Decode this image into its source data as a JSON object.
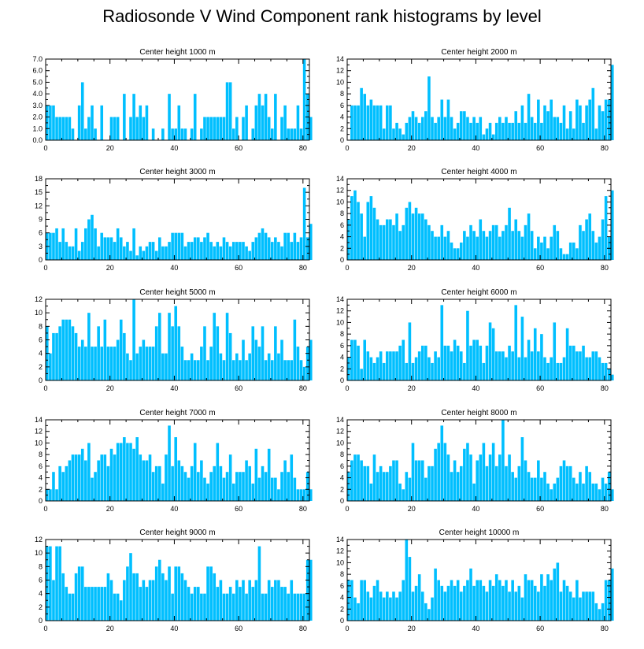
{
  "page": {
    "title": "Radiosonde V Wind Component rank histograms by level"
  },
  "style": {
    "bar_color": "#00BFFF",
    "bar_gap_color": "#ffffff",
    "axis_color": "#000000"
  },
  "chart_data": [
    {
      "type": "bar",
      "title": "Center height 1000 m",
      "xlabel": "",
      "ylabel": "",
      "xlim": [
        0,
        82
      ],
      "ylim": [
        0,
        7
      ],
      "yticks": [
        "0.0",
        "1.0",
        "2.0",
        "3.0",
        "4.0",
        "5.0",
        "6.0",
        "7.0"
      ],
      "ytick_values": [
        0,
        1,
        2,
        3,
        4,
        5,
        6,
        7
      ],
      "xticks": [
        0,
        20,
        40,
        60,
        80
      ],
      "values": [
        3,
        3,
        3,
        2,
        2,
        2,
        2,
        2,
        1,
        0,
        3,
        5,
        1,
        2,
        3,
        1,
        0,
        3,
        0,
        0,
        2,
        2,
        2,
        0,
        4,
        0,
        2,
        4,
        2,
        3,
        2,
        3,
        0,
        1,
        0,
        0,
        1,
        0,
        4,
        1,
        1,
        3,
        1,
        1,
        0,
        1,
        4,
        0,
        1,
        2,
        2,
        2,
        2,
        2,
        2,
        2,
        5,
        5,
        1,
        2,
        0,
        2,
        3,
        0,
        1,
        3,
        4,
        3,
        4,
        2,
        1,
        4,
        0,
        2,
        3,
        1,
        1,
        1,
        3,
        1,
        7,
        4,
        2
      ]
    },
    {
      "type": "bar",
      "title": "Center height 2000 m",
      "xlabel": "",
      "ylabel": "",
      "xlim": [
        0,
        82
      ],
      "ylim": [
        0,
        14
      ],
      "yticks": [
        "0",
        "2",
        "4",
        "6",
        "8",
        "10",
        "12",
        "14"
      ],
      "ytick_values": [
        0,
        2,
        4,
        6,
        8,
        10,
        12,
        14
      ],
      "xticks": [
        0,
        20,
        40,
        60,
        80
      ],
      "values": [
        0,
        6,
        6,
        6,
        9,
        8,
        6,
        7,
        6,
        6,
        6,
        2,
        6,
        6,
        2,
        3,
        2,
        1,
        3,
        4,
        5,
        4,
        3,
        4,
        5,
        11,
        4,
        3,
        4,
        7,
        4,
        7,
        4,
        2,
        3,
        5,
        5,
        4,
        3,
        4,
        3,
        4,
        1,
        2,
        3,
        1,
        3,
        4,
        3,
        4,
        3,
        3,
        5,
        3,
        6,
        3,
        8,
        4,
        3,
        7,
        3,
        6,
        5,
        7,
        4,
        4,
        3,
        6,
        2,
        5,
        2,
        7,
        6,
        3,
        6,
        7,
        9,
        2,
        6,
        5,
        7,
        7,
        13
      ]
    },
    {
      "type": "bar",
      "title": "Center height 3000 m",
      "xlabel": "",
      "ylabel": "",
      "xlim": [
        0,
        82
      ],
      "ylim": [
        0,
        18
      ],
      "yticks": [
        "0",
        "3",
        "6",
        "9",
        "12",
        "15",
        "18"
      ],
      "ytick_values": [
        0,
        3,
        6,
        9,
        12,
        15,
        18
      ],
      "xticks": [
        0,
        20,
        40,
        60,
        80
      ],
      "values": [
        6,
        6,
        6,
        7,
        4,
        7,
        4,
        3,
        3,
        7,
        2,
        4,
        7,
        9,
        10,
        7,
        3,
        6,
        5,
        5,
        5,
        4,
        7,
        5,
        3,
        4,
        2,
        7,
        1,
        3,
        2,
        3,
        4,
        4,
        2,
        5,
        3,
        3,
        4,
        6,
        6,
        6,
        6,
        3,
        4,
        4,
        5,
        5,
        4,
        5,
        6,
        4,
        3,
        4,
        3,
        5,
        4,
        3,
        4,
        4,
        4,
        4,
        3,
        2,
        4,
        5,
        6,
        7,
        6,
        5,
        4,
        5,
        4,
        3,
        6,
        6,
        4,
        6,
        4,
        5,
        16,
        5,
        8
      ]
    },
    {
      "type": "bar",
      "title": "Center height 4000 m",
      "xlabel": "",
      "ylabel": "",
      "xlim": [
        0,
        82
      ],
      "ylim": [
        0,
        14
      ],
      "yticks": [
        "0",
        "2",
        "4",
        "6",
        "8",
        "10",
        "12",
        "14"
      ],
      "ytick_values": [
        0,
        2,
        4,
        6,
        8,
        10,
        12,
        14
      ],
      "xticks": [
        0,
        20,
        40,
        60,
        80
      ],
      "values": [
        7,
        11,
        12,
        10,
        8,
        4,
        10,
        11,
        9,
        7,
        6,
        6,
        7,
        7,
        6,
        8,
        5,
        6,
        9,
        10,
        8,
        9,
        8,
        8,
        7,
        6,
        5,
        4,
        4,
        6,
        4,
        5,
        3,
        2,
        2,
        3,
        5,
        4,
        6,
        5,
        4,
        7,
        5,
        4,
        5,
        6,
        6,
        4,
        5,
        6,
        9,
        5,
        7,
        5,
        4,
        6,
        8,
        5,
        2,
        4,
        3,
        4,
        2,
        4,
        6,
        5,
        2,
        1,
        1,
        3,
        3,
        2,
        6,
        5,
        7,
        8,
        5,
        3,
        4,
        7,
        11,
        4,
        12
      ]
    },
    {
      "type": "bar",
      "title": "Center height 5000 m",
      "xlabel": "",
      "ylabel": "",
      "xlim": [
        0,
        82
      ],
      "ylim": [
        0,
        12
      ],
      "yticks": [
        "0",
        "2",
        "4",
        "6",
        "8",
        "10",
        "12"
      ],
      "ytick_values": [
        0,
        2,
        4,
        6,
        8,
        10,
        12
      ],
      "xticks": [
        0,
        20,
        40,
        60,
        80
      ],
      "values": [
        8,
        4,
        7,
        7,
        8,
        9,
        9,
        9,
        8,
        7,
        5,
        6,
        5,
        10,
        5,
        5,
        8,
        5,
        9,
        5,
        5,
        5,
        6,
        9,
        7,
        4,
        3,
        12,
        4,
        5,
        6,
        5,
        5,
        5,
        8,
        10,
        4,
        4,
        10,
        8,
        11,
        8,
        5,
        3,
        3,
        4,
        3,
        3,
        5,
        8,
        3,
        5,
        10,
        8,
        4,
        3,
        10,
        7,
        3,
        4,
        3,
        6,
        3,
        4,
        8,
        6,
        5,
        8,
        3,
        4,
        3,
        8,
        4,
        6,
        3,
        3,
        3,
        9,
        5,
        3,
        2,
        5,
        6
      ]
    },
    {
      "type": "bar",
      "title": "Center height 6000 m",
      "xlabel": "",
      "ylabel": "",
      "xlim": [
        0,
        82
      ],
      "ylim": [
        0,
        14
      ],
      "yticks": [
        "0",
        "2",
        "4",
        "6",
        "8",
        "10",
        "12",
        "14"
      ],
      "ytick_values": [
        0,
        2,
        4,
        6,
        8,
        10,
        12,
        14
      ],
      "xticks": [
        0,
        20,
        40,
        60,
        80
      ],
      "values": [
        4,
        7,
        7,
        6,
        2,
        7,
        5,
        4,
        3,
        4,
        5,
        3,
        5,
        5,
        5,
        5,
        6,
        7,
        3,
        10,
        3,
        4,
        5,
        6,
        6,
        4,
        3,
        5,
        4,
        13,
        6,
        6,
        5,
        7,
        6,
        5,
        3,
        12,
        6,
        7,
        7,
        6,
        3,
        6,
        10,
        9,
        5,
        5,
        5,
        4,
        6,
        5,
        13,
        4,
        11,
        4,
        7,
        5,
        9,
        5,
        8,
        4,
        3,
        4,
        10,
        3,
        3,
        4,
        9,
        6,
        6,
        5,
        5,
        6,
        4,
        4,
        5,
        5,
        4,
        3,
        3,
        2,
        1
      ]
    },
    {
      "type": "bar",
      "title": "Center height 7000 m",
      "xlabel": "",
      "ylabel": "",
      "xlim": [
        0,
        82
      ],
      "ylim": [
        0,
        14
      ],
      "yticks": [
        "0",
        "2",
        "4",
        "6",
        "8",
        "10",
        "12",
        "14"
      ],
      "ytick_values": [
        0,
        2,
        4,
        6,
        8,
        10,
        12,
        14
      ],
      "xticks": [
        0,
        20,
        40,
        60,
        80
      ],
      "values": [
        2,
        2,
        5,
        2,
        6,
        5,
        6,
        7,
        8,
        8,
        8,
        9,
        7,
        10,
        4,
        5,
        7,
        8,
        8,
        6,
        9,
        8,
        10,
        10,
        11,
        10,
        10,
        9,
        11,
        8,
        7,
        7,
        8,
        5,
        6,
        6,
        3,
        8,
        13,
        6,
        11,
        7,
        6,
        5,
        4,
        6,
        10,
        5,
        7,
        4,
        3,
        5,
        6,
        10,
        6,
        4,
        5,
        8,
        3,
        5,
        5,
        5,
        7,
        6,
        3,
        9,
        4,
        6,
        5,
        9,
        4,
        4,
        2,
        5,
        7,
        5,
        8,
        4,
        2,
        2,
        2,
        5,
        2
      ]
    },
    {
      "type": "bar",
      "title": "Center height 8000 m",
      "xlabel": "",
      "ylabel": "",
      "xlim": [
        0,
        82
      ],
      "ylim": [
        0,
        14
      ],
      "yticks": [
        "0",
        "2",
        "4",
        "6",
        "8",
        "10",
        "12",
        "14"
      ],
      "ytick_values": [
        0,
        2,
        4,
        6,
        8,
        10,
        12,
        14
      ],
      "xticks": [
        0,
        20,
        40,
        60,
        80
      ],
      "values": [
        5,
        7,
        8,
        8,
        7,
        6,
        6,
        3,
        8,
        5,
        6,
        5,
        5,
        6,
        7,
        7,
        3,
        2,
        5,
        4,
        10,
        7,
        7,
        7,
        4,
        6,
        6,
        9,
        10,
        13,
        10,
        8,
        5,
        7,
        5,
        6,
        9,
        10,
        8,
        3,
        7,
        8,
        10,
        6,
        8,
        10,
        6,
        8,
        14,
        6,
        8,
        5,
        4,
        6,
        11,
        7,
        5,
        4,
        4,
        7,
        4,
        5,
        3,
        2,
        3,
        4,
        6,
        7,
        6,
        6,
        4,
        3,
        5,
        3,
        6,
        5,
        3,
        3,
        2,
        4,
        3,
        5,
        2
      ]
    },
    {
      "type": "bar",
      "title": "Center height 9000 m",
      "xlabel": "",
      "ylabel": "",
      "xlim": [
        0,
        82
      ],
      "ylim": [
        0,
        12
      ],
      "yticks": [
        "0",
        "2",
        "4",
        "6",
        "8",
        "10",
        "12"
      ],
      "ytick_values": [
        0,
        2,
        4,
        6,
        8,
        10,
        12
      ],
      "xticks": [
        0,
        20,
        40,
        60,
        80
      ],
      "values": [
        11,
        11,
        6,
        11,
        11,
        7,
        5,
        4,
        4,
        7,
        8,
        8,
        5,
        5,
        5,
        5,
        5,
        5,
        5,
        7,
        6,
        4,
        4,
        3,
        6,
        8,
        10,
        7,
        7,
        5,
        6,
        5,
        6,
        6,
        8,
        9,
        7,
        6,
        8,
        4,
        8,
        8,
        7,
        6,
        5,
        4,
        5,
        5,
        4,
        4,
        8,
        8,
        7,
        5,
        6,
        4,
        4,
        5,
        4,
        6,
        5,
        6,
        4,
        6,
        5,
        6,
        11,
        4,
        4,
        6,
        5,
        6,
        6,
        5,
        5,
        4,
        6,
        4,
        4,
        4,
        4,
        9,
        9
      ]
    },
    {
      "type": "bar",
      "title": "Center height 10000 m",
      "xlabel": "",
      "ylabel": "",
      "xlim": [
        0,
        82
      ],
      "ylim": [
        0,
        14
      ],
      "yticks": [
        "0",
        "2",
        "4",
        "6",
        "8",
        "10",
        "12",
        "14"
      ],
      "ytick_values": [
        0,
        2,
        4,
        6,
        8,
        10,
        12,
        14
      ],
      "xticks": [
        0,
        20,
        40,
        60,
        80
      ],
      "values": [
        7,
        7,
        4,
        3,
        7,
        7,
        5,
        4,
        6,
        7,
        5,
        4,
        5,
        4,
        5,
        4,
        5,
        7,
        14,
        11,
        5,
        6,
        8,
        5,
        3,
        2,
        4,
        9,
        7,
        6,
        5,
        6,
        7,
        6,
        7,
        5,
        6,
        7,
        9,
        6,
        7,
        7,
        6,
        5,
        7,
        6,
        8,
        7,
        6,
        7,
        5,
        7,
        5,
        6,
        4,
        8,
        7,
        7,
        6,
        5,
        8,
        6,
        8,
        7,
        9,
        10,
        5,
        7,
        6,
        5,
        4,
        7,
        4,
        5,
        5,
        5,
        5,
        3,
        2,
        3,
        7,
        7,
        9
      ]
    }
  ]
}
